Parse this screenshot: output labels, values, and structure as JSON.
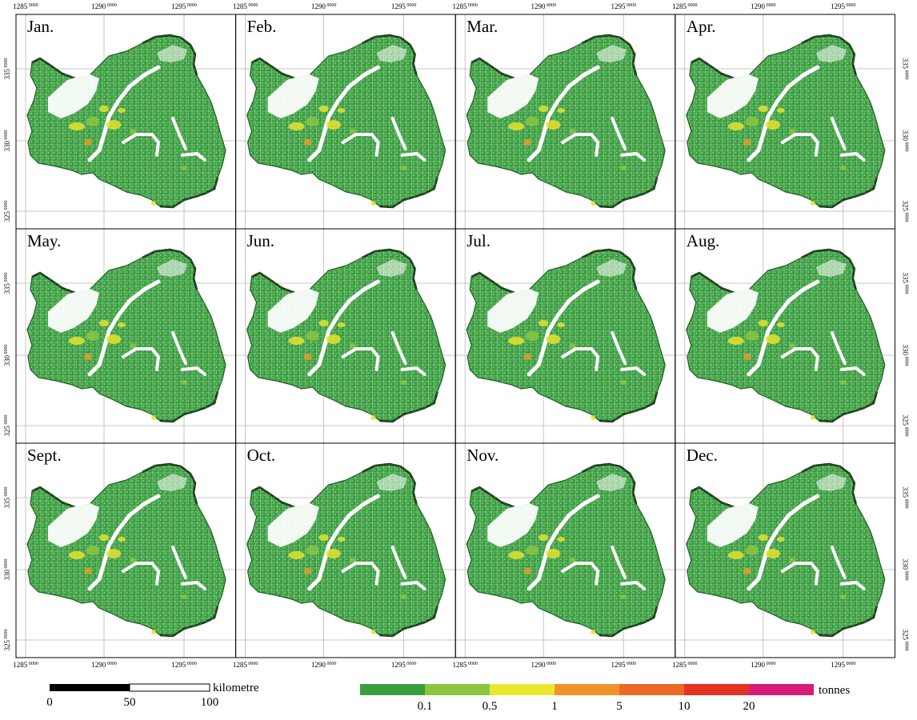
{
  "figure": {
    "panels": [
      {
        "month": "Jan."
      },
      {
        "month": "Feb."
      },
      {
        "month": "Mar."
      },
      {
        "month": "Apr."
      },
      {
        "month": "May."
      },
      {
        "month": "Jun."
      },
      {
        "month": "Jul."
      },
      {
        "month": "Aug."
      },
      {
        "month": "Sept."
      },
      {
        "month": "Oct."
      },
      {
        "month": "Nov."
      },
      {
        "month": "Dec."
      }
    ],
    "x_ticks": [
      {
        "main": "1285",
        "sup": "0000"
      },
      {
        "main": "1290",
        "sup": "0000"
      },
      {
        "main": "1295",
        "sup": "0000"
      }
    ],
    "y_ticks": [
      {
        "main": "335",
        "sup": "0000"
      },
      {
        "main": "330",
        "sup": "0000"
      },
      {
        "main": "325",
        "sup": "0000"
      }
    ],
    "colors": {
      "land": "#3a9e3f",
      "highlight_light": "#8cc63f",
      "highlight_yellow": "#e6e22e",
      "highlight_orange": "#e79a2a",
      "grid": "#b8b8b8",
      "frame": "#000000",
      "boundary_dash": "#7a1f00"
    }
  },
  "scale_bar": {
    "unit": "kilometre",
    "ticks": [
      "0",
      "50",
      "100"
    ]
  },
  "legend": {
    "unit": "tonnes",
    "colors": [
      "#3a9e3f",
      "#8cc63f",
      "#ece82f",
      "#f2922a",
      "#ec6a23",
      "#e53323",
      "#d81b77"
    ],
    "breaks": [
      "0.1",
      "0.5",
      "1",
      "5",
      "10",
      "20"
    ]
  }
}
